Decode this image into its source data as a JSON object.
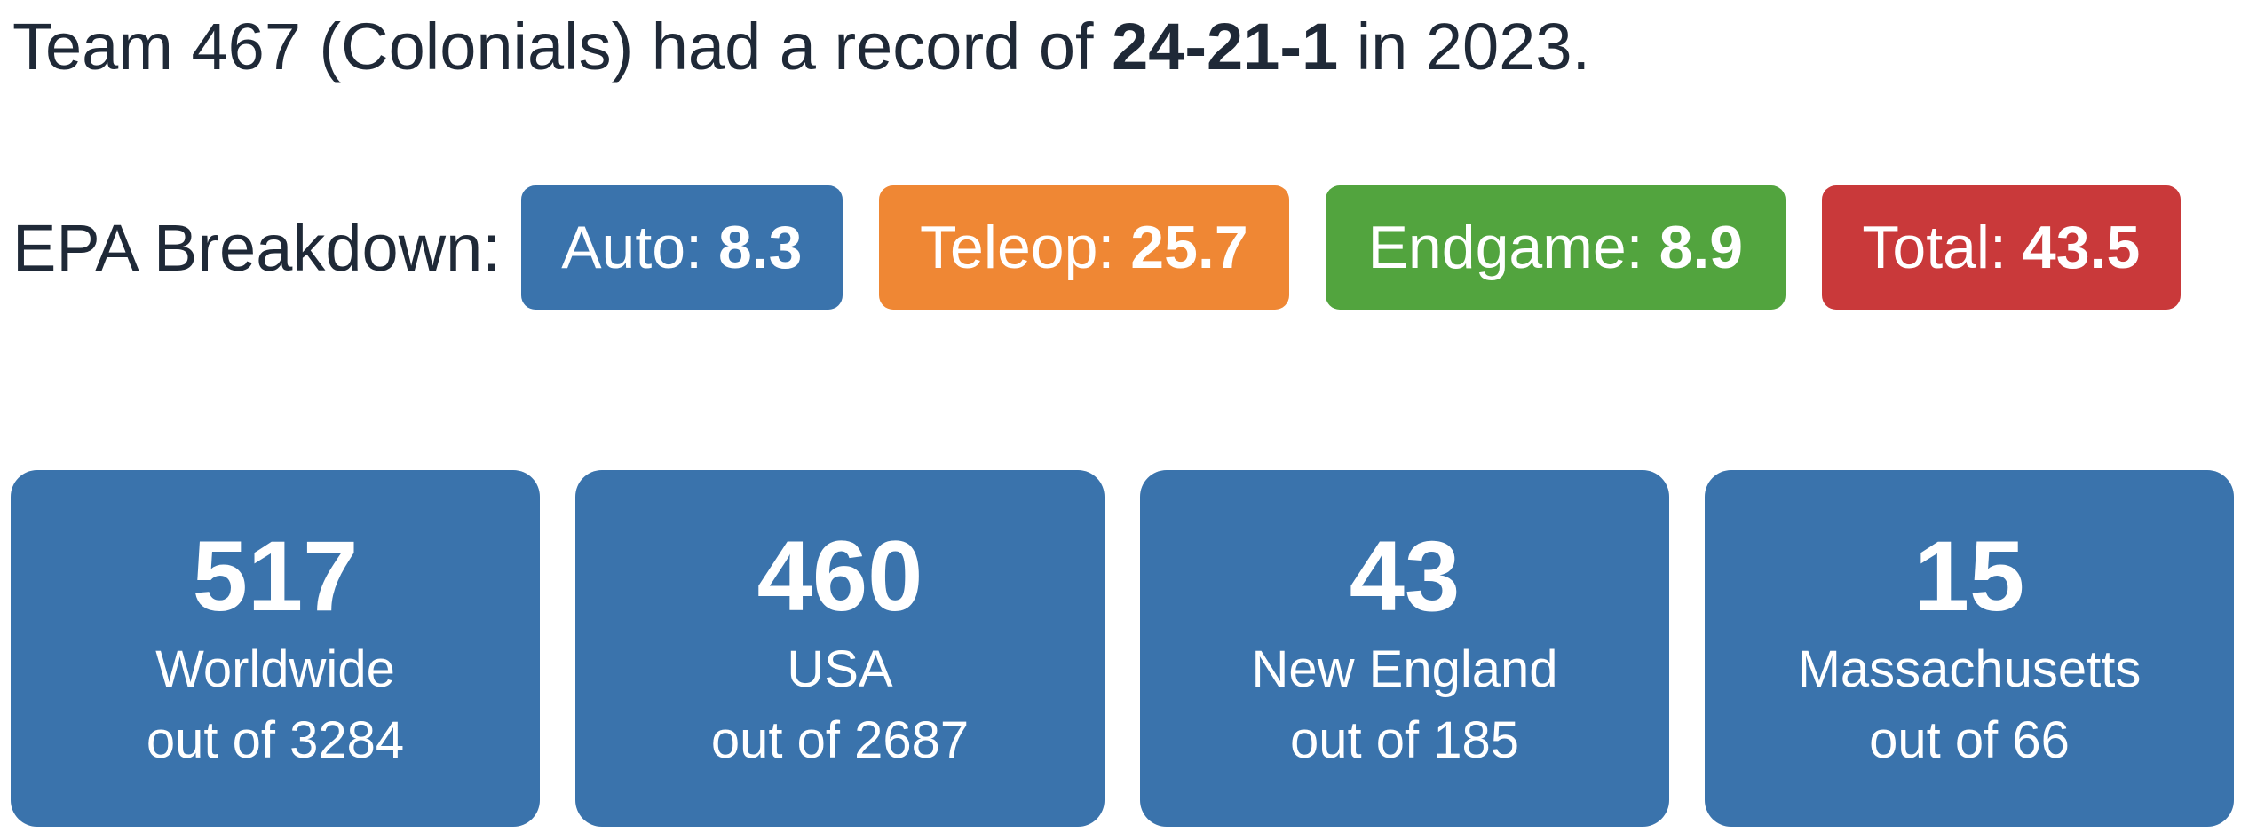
{
  "summary": {
    "prefix": "Team 467 (Colonials) had a record of",
    "record": "24-21-1",
    "suffix": "in 2023."
  },
  "epa": {
    "label": "EPA Breakdown:",
    "badges": [
      {
        "label": "Auto:",
        "value": "8.3",
        "color": "#3a73ac"
      },
      {
        "label": "Teleop:",
        "value": "25.7",
        "color": "#ef8734"
      },
      {
        "label": "Endgame:",
        "value": "8.9",
        "color": "#52a43e"
      },
      {
        "label": "Total:",
        "value": "43.5",
        "color": "#c9393a"
      }
    ]
  },
  "ranks": [
    {
      "rank": "517",
      "region": "Worldwide",
      "out_of": "out of 3284"
    },
    {
      "rank": "460",
      "region": "USA",
      "out_of": "out of 2687"
    },
    {
      "rank": "43",
      "region": "New England",
      "out_of": "out of 185"
    },
    {
      "rank": "15",
      "region": "Massachusetts",
      "out_of": "out of 66"
    }
  ],
  "colors": {
    "card_background": "#3a73ac",
    "text": "#1f2937"
  }
}
